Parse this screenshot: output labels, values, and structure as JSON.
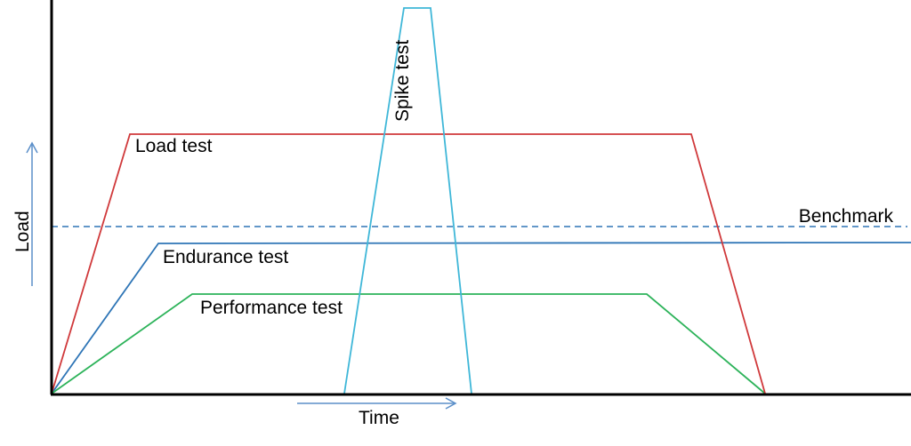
{
  "colors": {
    "axis": "#000000",
    "load_test": "#d0393b",
    "endurance_test": "#2e75b6",
    "performance_test": "#2db35a",
    "spike_test": "#3fb7d8",
    "benchmark": "#2e75b6",
    "arrow": "#5b8fc9"
  },
  "labels": {
    "load_test": "Load test",
    "endurance_test": "Endurance test",
    "performance_test": "Performance test",
    "spike_test": "Spike test",
    "benchmark": "Benchmark",
    "x_axis": "Time",
    "y_axis": "Load"
  }
}
